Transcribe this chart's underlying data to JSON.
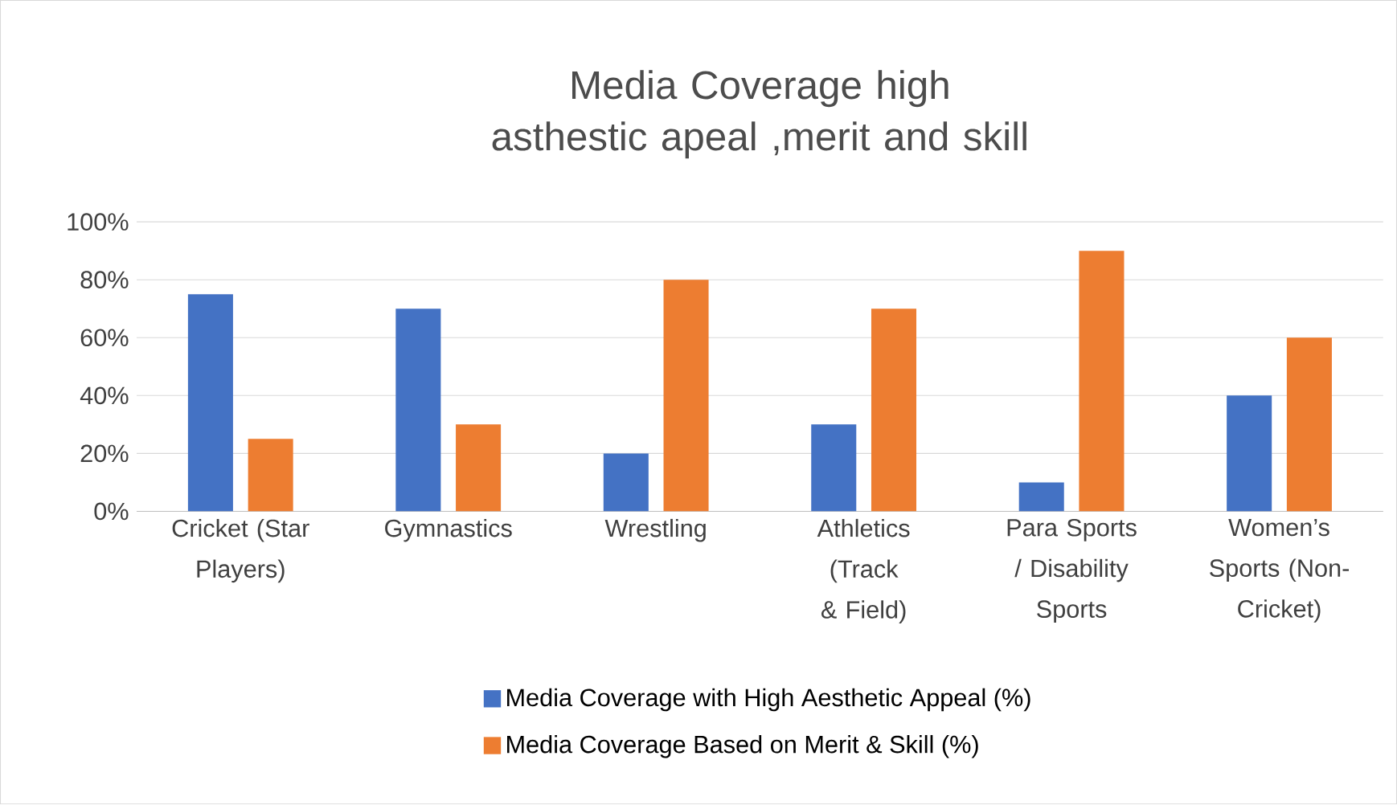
{
  "chart_data": {
    "type": "bar",
    "title": "Media Coverage high asthestic apeal ,merit and skill",
    "categories": [
      "Cricket (Star Players)",
      "Gymnastics",
      "Wrestling",
      "Athletics (Track & Field)",
      "Para Sports / Disability Sports",
      "Women’s Sports (Non-Cricket)"
    ],
    "series": [
      {
        "name": "Media Coverage with High Aesthetic Appeal (%)",
        "color": "#4472c4",
        "values": [
          75,
          70,
          20,
          30,
          10,
          40
        ]
      },
      {
        "name": "Media Coverage Based on Merit & Skill (%)",
        "color": "#ed7d31",
        "values": [
          25,
          30,
          80,
          70,
          90,
          60
        ]
      }
    ],
    "ylim": [
      0,
      100
    ],
    "yticks": [
      {
        "value": 0,
        "label": "0%"
      },
      {
        "value": 20,
        "label": "20%"
      },
      {
        "value": 40,
        "label": "40%"
      },
      {
        "value": 60,
        "label": "60%"
      },
      {
        "value": 80,
        "label": "80%"
      },
      {
        "value": 100,
        "label": "100%"
      }
    ],
    "grid": "y",
    "legend": "bottom"
  }
}
